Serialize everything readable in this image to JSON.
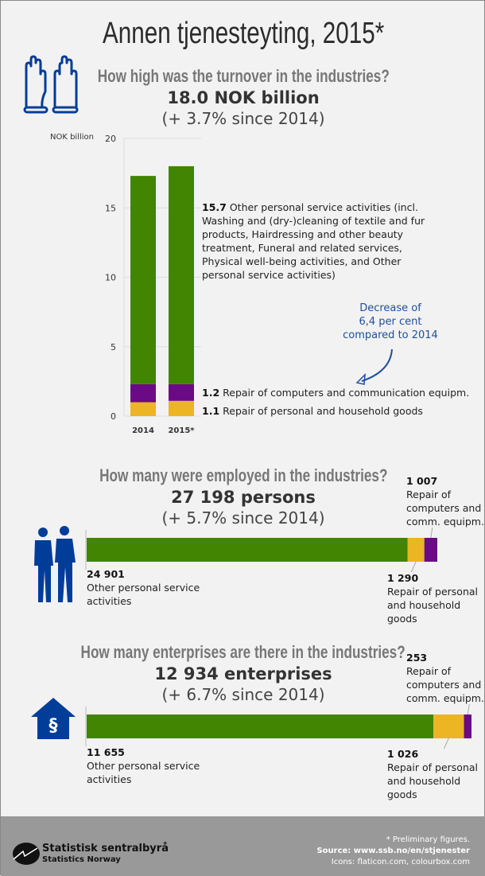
{
  "title": "Annen tjenesteyting, 2015*",
  "colors": {
    "green": "#418502",
    "purple": "#6a0a85",
    "yellow": "#ecb524",
    "blue": "#003d99",
    "annotation": "#1f4fa0"
  },
  "turnover": {
    "question": "How high was the turnover in the industries?",
    "headline": "18.0 NOK billion",
    "change": "(+ 3.7% since 2014)",
    "icon": "gloves-icon",
    "annotation": [
      "Decrease of",
      "6,4 per cent",
      "compared to 2014"
    ],
    "labels": [
      {
        "value": "15.7",
        "text": "Other personal service activities (incl. Washing and (dry-)cleaning of textile and fur products, Hairdressing and other beauty treatment, Funeral and related services, Physical well-being activities, and Other personal service activities)"
      },
      {
        "value": "1.2",
        "text": "Repair of computers and communication equipm."
      },
      {
        "value": "1.1",
        "text": "Repair of personal and household goods"
      }
    ]
  },
  "chart_data": [
    {
      "type": "bar",
      "stacked": true,
      "ylabel": "NOK billion",
      "ylim": [
        0,
        20
      ],
      "yticks": [
        "0",
        "5",
        "10",
        "15",
        "20"
      ],
      "grid": true,
      "categories": [
        "2014",
        "2015*"
      ],
      "series": [
        {
          "name": "Repair of personal and household goods",
          "color": "#ecb524",
          "values": [
            1.0,
            1.1
          ]
        },
        {
          "name": "Repair of computers and communication equipm.",
          "color": "#6a0a85",
          "values": [
            1.3,
            1.2
          ]
        },
        {
          "name": "Other personal service activities",
          "color": "#418502",
          "values": [
            15.0,
            15.7
          ]
        }
      ]
    },
    {
      "type": "bar",
      "orientation": "horizontal",
      "stacked": true,
      "categories": [
        "Employed"
      ],
      "series": [
        {
          "name": "Other personal service activities",
          "color": "#418502",
          "values": [
            24901
          ]
        },
        {
          "name": "Repair of personal and household goods",
          "color": "#ecb524",
          "values": [
            1290
          ]
        },
        {
          "name": "Repair of computers and comm. equipm.",
          "color": "#6a0a85",
          "values": [
            1007
          ]
        }
      ]
    },
    {
      "type": "bar",
      "orientation": "horizontal",
      "stacked": true,
      "categories": [
        "Enterprises"
      ],
      "series": [
        {
          "name": "Other personal service activities",
          "color": "#418502",
          "values": [
            11655
          ]
        },
        {
          "name": "Repair of personal and household goods",
          "color": "#ecb524",
          "values": [
            1026
          ]
        },
        {
          "name": "Repair of computers and comm. equipm.",
          "color": "#6a0a85",
          "values": [
            253
          ]
        }
      ]
    }
  ],
  "employed": {
    "question": "How many were employed in the industries?",
    "headline": "27 198 persons",
    "change": "(+ 5.7% since 2014)",
    "icon": "people-icon",
    "labels": {
      "main_value": "24 901",
      "main_text": "Other personal service activities",
      "yellow_value": "1 290",
      "yellow_text": "Repair of personal and household goods",
      "purple_value": "1 007",
      "purple_text": "Repair of computers and comm. equipm."
    }
  },
  "enterprises": {
    "question": "How many enterprises are there in the industries?",
    "headline": "12 934 enterprises",
    "change": "(+ 6.7% since 2014)",
    "icon": "house-paragraph-icon",
    "labels": {
      "main_value": "11 655",
      "main_text": "Other personal service activities",
      "yellow_value": "1 026",
      "yellow_text": "Repair of personal and household goods",
      "purple_value": "253",
      "purple_text": "Repair of computers and comm. equipm."
    }
  },
  "footer": {
    "logo_name": "Statistisk sentralbyrå",
    "logo_sub": "Statistics Norway",
    "note": "* Preliminary figures.",
    "source": "Source: www.ssb.no/en/stjenester",
    "icons": "Icons: flaticon.com, colourbox.com"
  }
}
